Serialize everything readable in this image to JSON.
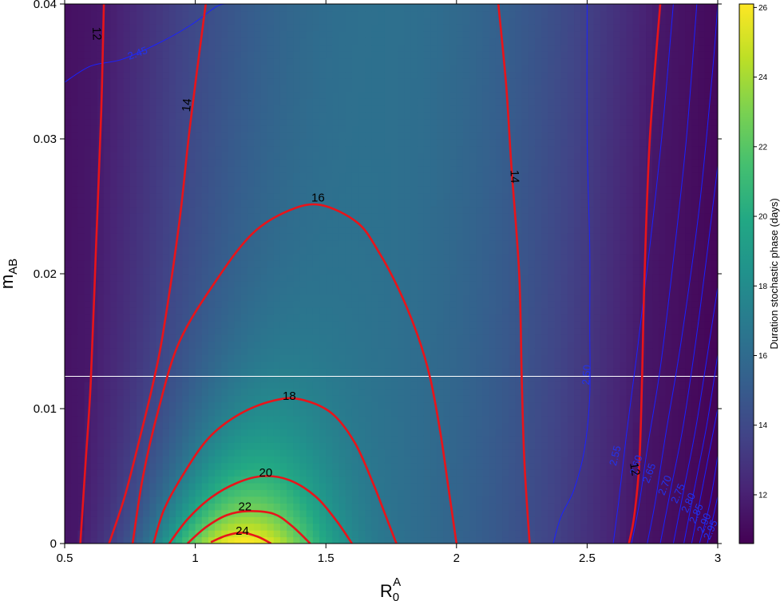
{
  "chart_data": {
    "type": "heatmap",
    "xlabel": {
      "main": "R",
      "sub": "0",
      "sup": "A"
    },
    "ylabel": {
      "main": "m",
      "sub": "AB"
    },
    "xlim": [
      0.5,
      3.0
    ],
    "ylim": [
      0,
      0.04
    ],
    "x_ticks": [
      "0.5",
      "1",
      "1.5",
      "2",
      "2.5",
      "3"
    ],
    "x_tick_values": [
      0.5,
      1.0,
      1.5,
      2.0,
      2.5,
      3.0
    ],
    "y_ticks": [
      "0",
      "0.01",
      "0.02",
      "0.03",
      "0.04"
    ],
    "y_tick_values": [
      0,
      0.01,
      0.02,
      0.03,
      0.04
    ],
    "colorscale": "viridis",
    "colorbar": {
      "title": "Duration stochastic phase (days)",
      "range": [
        10.6,
        26.1
      ],
      "ticks": [
        "12",
        "14",
        "16",
        "18",
        "20",
        "22",
        "24",
        "26"
      ],
      "tick_values": [
        12,
        14,
        16,
        18,
        20,
        22,
        24,
        26
      ]
    },
    "horizontal_reference_line": {
      "y": 0.0124,
      "color": "#ffffff"
    },
    "red_contours": [
      {
        "level": 12,
        "label": "12",
        "segments": [
          [
            [
              0.56,
              0
            ],
            [
              0.58,
              0.006
            ],
            [
              0.6,
              0.012
            ],
            [
              0.62,
              0.022
            ],
            [
              0.64,
              0.032
            ],
            [
              0.65,
              0.04
            ]
          ],
          [
            [
              2.66,
              0
            ],
            [
              2.68,
              0.002
            ],
            [
              2.7,
              0.006
            ],
            [
              2.71,
              0.012
            ],
            [
              2.72,
              0.02
            ],
            [
              2.74,
              0.03
            ],
            [
              2.78,
              0.04
            ]
          ]
        ],
        "labels": [
          {
            "x": 0.62,
            "y": 0.0378,
            "text": "12",
            "angle": 88
          },
          {
            "x": 2.68,
            "y": 0.0055,
            "text": "12",
            "angle": 80
          }
        ]
      },
      {
        "level": 14,
        "label": "14",
        "segments": [
          [
            [
              0.67,
              0
            ],
            [
              0.73,
              0.0035
            ],
            [
              0.79,
              0.008
            ],
            [
              0.84,
              0.012
            ],
            [
              0.88,
              0.016
            ],
            [
              0.94,
              0.024
            ],
            [
              0.98,
              0.031
            ],
            [
              1.04,
              0.04
            ]
          ],
          [
            [
              2.28,
              0
            ],
            [
              2.26,
              0.006
            ],
            [
              2.25,
              0.012
            ],
            [
              2.24,
              0.02
            ],
            [
              2.21,
              0.028
            ],
            [
              2.19,
              0.034
            ],
            [
              2.16,
              0.04
            ]
          ]
        ],
        "labels": [
          {
            "x": 0.97,
            "y": 0.0325,
            "text": "14",
            "angle": -84
          },
          {
            "x": 2.22,
            "y": 0.0272,
            "text": "14",
            "angle": 88
          }
        ]
      },
      {
        "level": 16,
        "label": "16",
        "segments": [
          [
            [
              0.76,
              0
            ],
            [
              0.8,
              0.005
            ],
            [
              0.86,
              0.01
            ],
            [
              0.94,
              0.015
            ],
            [
              1.08,
              0.0195
            ],
            [
              1.22,
              0.023
            ],
            [
              1.36,
              0.0247
            ],
            [
              1.48,
              0.0251
            ],
            [
              1.62,
              0.0238
            ],
            [
              1.7,
              0.0217
            ],
            [
              1.78,
              0.0188
            ],
            [
              1.85,
              0.0155
            ],
            [
              1.9,
              0.0122
            ],
            [
              1.94,
              0.008
            ],
            [
              1.97,
              0.004
            ],
            [
              2.0,
              0
            ]
          ]
        ],
        "labels": [
          {
            "x": 1.47,
            "y": 0.0256,
            "text": "16",
            "angle": 0
          }
        ]
      },
      {
        "level": 18,
        "label": "18",
        "segments": [
          [
            [
              0.84,
              0
            ],
            [
              0.88,
              0.0025
            ],
            [
              0.95,
              0.005
            ],
            [
              1.05,
              0.0078
            ],
            [
              1.17,
              0.0096
            ],
            [
              1.3,
              0.0106
            ],
            [
              1.4,
              0.0107
            ],
            [
              1.52,
              0.0097
            ],
            [
              1.61,
              0.0075
            ],
            [
              1.68,
              0.0045
            ],
            [
              1.73,
              0.002
            ],
            [
              1.77,
              0
            ]
          ]
        ],
        "labels": [
          {
            "x": 1.36,
            "y": 0.0109,
            "text": "18",
            "angle": 0
          }
        ]
      },
      {
        "level": 20,
        "label": "20",
        "segments": [
          [
            [
              0.9,
              0
            ],
            [
              0.97,
              0.0018
            ],
            [
              1.06,
              0.0034
            ],
            [
              1.16,
              0.0045
            ],
            [
              1.26,
              0.005
            ],
            [
              1.36,
              0.0047
            ],
            [
              1.46,
              0.0035
            ],
            [
              1.54,
              0.0017
            ],
            [
              1.6,
              0
            ]
          ]
        ],
        "labels": [
          {
            "x": 1.27,
            "y": 0.0052,
            "text": "20",
            "angle": 0
          }
        ]
      },
      {
        "level": 22,
        "label": "22",
        "segments": [
          [
            [
              0.97,
              0
            ],
            [
              1.04,
              0.0012
            ],
            [
              1.12,
              0.0021
            ],
            [
              1.2,
              0.0024
            ],
            [
              1.3,
              0.0022
            ],
            [
              1.37,
              0.0013
            ],
            [
              1.44,
              0
            ]
          ]
        ],
        "labels": [
          {
            "x": 1.19,
            "y": 0.0027,
            "text": "22",
            "angle": 0
          }
        ]
      },
      {
        "level": 24,
        "label": "24",
        "segments": [
          [
            [
              1.06,
              0.0001
            ],
            [
              1.12,
              0.0006
            ],
            [
              1.18,
              0.0008
            ],
            [
              1.24,
              0.0005
            ],
            [
              1.29,
              0
            ]
          ]
        ],
        "labels": [
          {
            "x": 1.18,
            "y": 0.0009,
            "text": "24",
            "angle": 0
          }
        ]
      }
    ],
    "blue_contours": [
      {
        "level": 2.45,
        "label": "2.45",
        "segments": [
          [
            [
              0.5,
              0.0342
            ],
            [
              0.6,
              0.0354
            ],
            [
              0.72,
              0.0359
            ],
            [
              0.86,
              0.0371
            ],
            [
              0.98,
              0.0384
            ],
            [
              1.08,
              0.0398
            ],
            [
              1.12,
              0.04
            ]
          ]
        ],
        "labels": [
          {
            "x": 0.78,
            "y": 0.0363,
            "text": "2.45",
            "angle": -20
          }
        ]
      },
      {
        "level": 2.5,
        "label": "2.50",
        "segments": [
          [
            [
              2.37,
              0
            ],
            [
              2.4,
              0.002
            ],
            [
              2.45,
              0.004
            ],
            [
              2.49,
              0.007
            ],
            [
              2.51,
              0.011
            ],
            [
              2.51,
              0.016
            ],
            [
              2.51,
              0.022
            ],
            [
              2.5,
              0.03
            ],
            [
              2.5,
              0.04
            ]
          ]
        ],
        "labels": [
          {
            "x": 2.5,
            "y": 0.0125,
            "text": "2.50",
            "angle": -86
          }
        ]
      },
      {
        "level": 2.55,
        "label": "2.55",
        "segments": [
          [
            [
              2.6,
              0
            ],
            [
              2.62,
              0.003
            ],
            [
              2.65,
              0.008
            ],
            [
              2.69,
              0.014
            ],
            [
              2.74,
              0.022
            ],
            [
              2.79,
              0.031
            ],
            [
              2.83,
              0.04
            ]
          ]
        ],
        "labels": [
          {
            "x": 2.61,
            "y": 0.0065,
            "text": "2.55",
            "angle": -76
          }
        ]
      },
      {
        "level": 2.6,
        "label": "2.60",
        "segments": [
          [
            [
              2.67,
              0
            ],
            [
              2.7,
              0.003
            ],
            [
              2.73,
              0.007
            ],
            [
              2.78,
              0.013
            ],
            [
              2.83,
              0.021
            ],
            [
              2.88,
              0.03
            ],
            [
              2.92,
              0.04
            ]
          ]
        ],
        "labels": [
          {
            "x": 2.69,
            "y": 0.0058,
            "text": "2.60",
            "angle": -72
          }
        ]
      },
      {
        "level": 2.65,
        "label": "2.65",
        "segments": [
          [
            [
              2.73,
              0
            ],
            [
              2.76,
              0.003
            ],
            [
              2.8,
              0.008
            ],
            [
              2.86,
              0.015
            ],
            [
              2.93,
              0.025
            ],
            [
              2.98,
              0.035
            ],
            [
              3.0,
              0.04
            ]
          ]
        ],
        "labels": [
          {
            "x": 2.74,
            "y": 0.0052,
            "text": "2.65",
            "angle": -70
          }
        ]
      },
      {
        "level": 2.7,
        "label": "2.70",
        "segments": [
          [
            [
              2.78,
              0
            ],
            [
              2.82,
              0.004
            ],
            [
              2.87,
              0.009
            ],
            [
              2.93,
              0.017
            ],
            [
              3.0,
              0.028
            ]
          ]
        ],
        "labels": [
          {
            "x": 2.8,
            "y": 0.0043,
            "text": "2.70",
            "angle": -68
          }
        ]
      },
      {
        "level": 2.75,
        "label": "2.75",
        "segments": [
          [
            [
              2.83,
              0
            ],
            [
              2.87,
              0.004
            ],
            [
              2.92,
              0.009
            ],
            [
              3.0,
              0.019
            ]
          ]
        ],
        "labels": [
          {
            "x": 2.85,
            "y": 0.0037,
            "text": "2.75",
            "angle": -66
          }
        ]
      },
      {
        "level": 2.8,
        "label": "2.80",
        "segments": [
          [
            [
              2.87,
              0
            ],
            [
              2.91,
              0.004
            ],
            [
              2.96,
              0.009
            ],
            [
              3.0,
              0.014
            ]
          ]
        ],
        "labels": [
          {
            "x": 2.89,
            "y": 0.003,
            "text": "2.80",
            "angle": -66
          }
        ]
      },
      {
        "level": 2.85,
        "label": "2.85",
        "segments": [
          [
            [
              2.9,
              0
            ],
            [
              2.94,
              0.004
            ],
            [
              3.0,
              0.01
            ]
          ]
        ],
        "labels": [
          {
            "x": 2.92,
            "y": 0.0022,
            "text": "2.85",
            "angle": -66
          }
        ]
      },
      {
        "level": 2.9,
        "label": "2.90",
        "segments": [
          [
            [
              2.93,
              0
            ],
            [
              2.97,
              0.003
            ],
            [
              3.0,
              0.0065
            ]
          ]
        ],
        "labels": [
          {
            "x": 2.95,
            "y": 0.0015,
            "text": "2.90",
            "angle": -66
          }
        ]
      },
      {
        "level": 2.95,
        "label": "2.95",
        "segments": [
          [
            [
              2.96,
              0
            ],
            [
              3.0,
              0.0035
            ]
          ]
        ],
        "labels": [
          {
            "x": 2.975,
            "y": 0.001,
            "text": "2.95",
            "angle": -66
          }
        ]
      }
    ]
  }
}
